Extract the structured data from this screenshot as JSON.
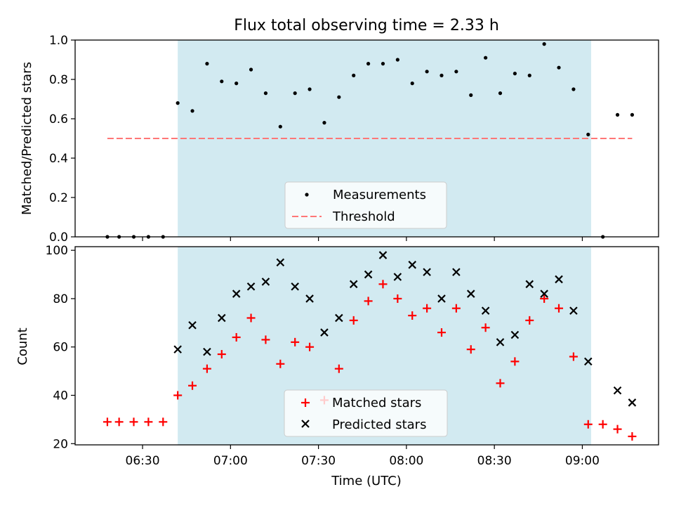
{
  "chart_data": [
    {
      "type": "scatter",
      "title": "Flux total observing time = 2.33 h",
      "xlabel": "",
      "ylabel": "Matched/Predicted stars",
      "ylim": [
        0,
        1.0
      ],
      "yticks": [
        "0.0",
        "0.2",
        "0.4",
        "0.6",
        "0.8",
        "1.0"
      ],
      "xlim": [
        "06:07",
        "09:26"
      ],
      "shaded_interval": [
        "06:42",
        "09:03"
      ],
      "shade_color": "#add8e6",
      "grid": false,
      "legend": {
        "placement": "lower-center",
        "entries": [
          "Measurements",
          "Threshold"
        ]
      },
      "series": [
        {
          "name": "Measurements",
          "marker": "dot",
          "color": "#000000",
          "points": [
            [
              "06:18",
              0.0
            ],
            [
              "06:22",
              0.0
            ],
            [
              "06:27",
              0.0
            ],
            [
              "06:32",
              0.0
            ],
            [
              "06:37",
              0.0
            ],
            [
              "06:42",
              0.68
            ],
            [
              "06:47",
              0.64
            ],
            [
              "06:52",
              0.88
            ],
            [
              "06:57",
              0.79
            ],
            [
              "07:02",
              0.78
            ],
            [
              "07:07",
              0.85
            ],
            [
              "07:12",
              0.73
            ],
            [
              "07:17",
              0.56
            ],
            [
              "07:22",
              0.73
            ],
            [
              "07:27",
              0.75
            ],
            [
              "07:32",
              0.58
            ],
            [
              "07:37",
              0.71
            ],
            [
              "07:42",
              0.82
            ],
            [
              "07:47",
              0.88
            ],
            [
              "07:52",
              0.88
            ],
            [
              "07:57",
              0.9
            ],
            [
              "08:02",
              0.78
            ],
            [
              "08:07",
              0.84
            ],
            [
              "08:12",
              0.82
            ],
            [
              "08:17",
              0.84
            ],
            [
              "08:22",
              0.72
            ],
            [
              "08:27",
              0.91
            ],
            [
              "08:32",
              0.73
            ],
            [
              "08:37",
              0.83
            ],
            [
              "08:42",
              0.82
            ],
            [
              "08:47",
              0.98
            ],
            [
              "08:52",
              0.86
            ],
            [
              "08:57",
              0.75
            ],
            [
              "09:02",
              0.52
            ],
            [
              "09:07",
              0.0
            ],
            [
              "09:12",
              0.62
            ],
            [
              "09:17",
              0.62
            ]
          ]
        },
        {
          "name": "Threshold",
          "marker": "dashed-line",
          "color": "#ff7777",
          "points": [
            [
              "06:18",
              0.5
            ],
            [
              "09:17",
              0.5
            ]
          ]
        }
      ]
    },
    {
      "type": "scatter",
      "title": "",
      "xlabel": "Time (UTC)",
      "ylabel": "Count",
      "ylim": [
        19.5,
        101.5
      ],
      "yticks": [
        "20",
        "40",
        "60",
        "80",
        "100"
      ],
      "xlim": [
        "06:07",
        "09:26"
      ],
      "xticks": [
        "06:30",
        "07:00",
        "07:30",
        "08:00",
        "08:30",
        "09:00"
      ],
      "shaded_interval": [
        "06:42",
        "09:03"
      ],
      "shade_color": "#add8e6",
      "grid": false,
      "legend": {
        "placement": "lower-center",
        "entries": [
          "Matched stars",
          "Predicted stars"
        ]
      },
      "series": [
        {
          "name": "Matched stars",
          "marker": "plus",
          "color": "#ff0000",
          "points": [
            [
              "06:18",
              29
            ],
            [
              "06:22",
              29
            ],
            [
              "06:27",
              29
            ],
            [
              "06:32",
              29
            ],
            [
              "06:37",
              29
            ],
            [
              "06:42",
              40
            ],
            [
              "06:47",
              44
            ],
            [
              "06:52",
              51
            ],
            [
              "06:57",
              57
            ],
            [
              "07:02",
              64
            ],
            [
              "07:07",
              72
            ],
            [
              "07:12",
              63
            ],
            [
              "07:17",
              53
            ],
            [
              "07:22",
              62
            ],
            [
              "07:27",
              60
            ],
            [
              "07:32",
              38
            ],
            [
              "07:37",
              51
            ],
            [
              "07:42",
              71
            ],
            [
              "07:47",
              79
            ],
            [
              "07:52",
              86
            ],
            [
              "07:57",
              80
            ],
            [
              "08:02",
              73
            ],
            [
              "08:07",
              76
            ],
            [
              "08:12",
              66
            ],
            [
              "08:17",
              76
            ],
            [
              "08:22",
              59
            ],
            [
              "08:27",
              68
            ],
            [
              "08:32",
              45
            ],
            [
              "08:37",
              54
            ],
            [
              "08:42",
              71
            ],
            [
              "08:47",
              80
            ],
            [
              "08:52",
              76
            ],
            [
              "08:57",
              56
            ],
            [
              "09:02",
              28
            ],
            [
              "09:07",
              28
            ],
            [
              "09:12",
              26
            ],
            [
              "09:17",
              23
            ]
          ]
        },
        {
          "name": "Predicted stars",
          "marker": "x",
          "color": "#000000",
          "points": [
            [
              "06:42",
              59
            ],
            [
              "06:47",
              69
            ],
            [
              "06:52",
              58
            ],
            [
              "06:57",
              72
            ],
            [
              "07:02",
              82
            ],
            [
              "07:07",
              85
            ],
            [
              "07:12",
              87
            ],
            [
              "07:17",
              95
            ],
            [
              "07:22",
              85
            ],
            [
              "07:27",
              80
            ],
            [
              "07:32",
              66
            ],
            [
              "07:37",
              72
            ],
            [
              "07:42",
              86
            ],
            [
              "07:47",
              90
            ],
            [
              "07:52",
              98
            ],
            [
              "07:57",
              89
            ],
            [
              "08:02",
              94
            ],
            [
              "08:07",
              91
            ],
            [
              "08:12",
              80
            ],
            [
              "08:17",
              91
            ],
            [
              "08:22",
              82
            ],
            [
              "08:27",
              75
            ],
            [
              "08:32",
              62
            ],
            [
              "08:37",
              65
            ],
            [
              "08:42",
              86
            ],
            [
              "08:47",
              82
            ],
            [
              "08:52",
              88
            ],
            [
              "08:57",
              75
            ],
            [
              "09:02",
              54
            ],
            [
              "09:12",
              42
            ],
            [
              "09:17",
              37
            ]
          ]
        }
      ]
    }
  ]
}
